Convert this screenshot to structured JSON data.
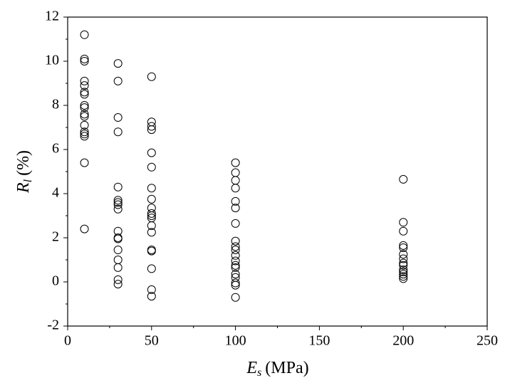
{
  "chart_data": {
    "type": "scatter",
    "x_label": {
      "symbol": "E",
      "subscript": "s",
      "unit": "(MPa)"
    },
    "y_label": {
      "symbol": "R",
      "subscript": "l",
      "unit": "(%)"
    },
    "x": [
      10,
      10,
      10,
      10,
      10,
      10,
      10,
      10,
      10,
      10,
      10,
      10,
      10,
      10,
      10,
      10,
      10,
      30,
      30,
      30,
      30,
      30,
      30,
      30,
      30,
      30,
      30,
      30,
      30,
      30,
      30,
      30,
      30,
      30,
      50,
      50,
      50,
      50,
      50,
      50,
      50,
      50,
      50,
      50,
      50,
      50,
      50,
      50,
      50,
      50,
      50,
      50,
      50,
      100,
      100,
      100,
      100,
      100,
      100,
      100,
      100,
      100,
      100,
      100,
      100,
      100,
      100,
      100,
      100,
      100,
      100,
      100,
      200,
      200,
      200,
      200,
      200,
      200,
      200,
      200,
      200,
      200,
      200,
      200,
      200,
      200
    ],
    "values": [
      11.2,
      10.1,
      10.0,
      9.1,
      8.9,
      8.6,
      8.5,
      8.0,
      7.9,
      7.6,
      7.5,
      7.1,
      6.8,
      6.7,
      6.6,
      5.4,
      2.4,
      9.9,
      9.1,
      7.45,
      6.8,
      4.3,
      3.7,
      3.6,
      3.5,
      3.3,
      2.3,
      2.0,
      1.95,
      1.45,
      1.0,
      0.65,
      0.1,
      -0.1,
      9.3,
      7.25,
      7.05,
      6.9,
      5.85,
      5.2,
      4.25,
      3.75,
      3.35,
      3.1,
      3.0,
      2.9,
      2.55,
      2.25,
      1.45,
      1.4,
      0.6,
      -0.35,
      -0.65,
      5.4,
      4.95,
      4.6,
      4.25,
      3.65,
      3.35,
      2.65,
      1.85,
      1.6,
      1.45,
      1.2,
      0.95,
      0.75,
      0.65,
      0.35,
      0.2,
      -0.05,
      -0.15,
      -0.7,
      4.65,
      2.7,
      2.3,
      1.65,
      1.55,
      1.25,
      1.05,
      0.85,
      0.75,
      0.55,
      0.45,
      0.35,
      0.25,
      0.15
    ],
    "marker_color": "#000000",
    "xlim": [
      0,
      250
    ],
    "xticks": [
      0,
      50,
      100,
      150,
      200,
      250
    ],
    "xminorticks": [
      25,
      75,
      125,
      175,
      225
    ],
    "ylim": [
      -2,
      12
    ],
    "yticks": [
      -2,
      0,
      2,
      4,
      6,
      8,
      10,
      12
    ],
    "yminorticks": [
      -1,
      1,
      3,
      5,
      7,
      9,
      11
    ],
    "grid": false
  }
}
